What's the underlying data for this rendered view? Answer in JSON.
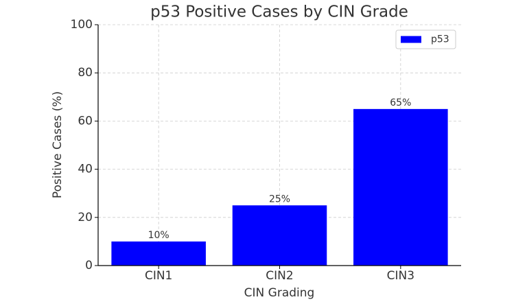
{
  "chart_data": {
    "type": "bar",
    "title": "p53 Positive Cases by CIN Grade",
    "x_label": "CIN Grading",
    "y_label": "Positive Cases (%)",
    "categories": [
      "CIN1",
      "CIN2",
      "CIN3"
    ],
    "series": [
      {
        "name": "p53",
        "color": "#0000ff",
        "values": [
          10,
          25,
          65
        ],
        "value_labels": [
          "10%",
          "25%",
          "65%"
        ]
      }
    ],
    "ylim": [
      0,
      100
    ],
    "yticks": [
      0,
      20,
      40,
      60,
      80,
      100
    ],
    "grid": true,
    "legend": "upper right"
  }
}
